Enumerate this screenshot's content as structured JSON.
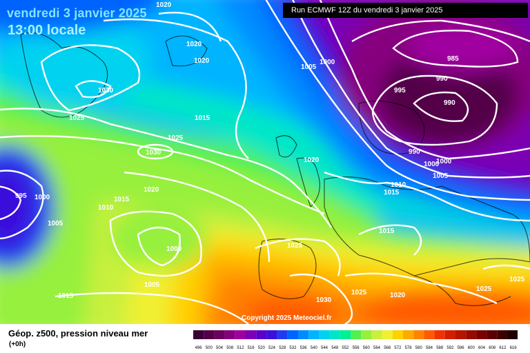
{
  "header": {
    "date_title": "vendredi 3 janvier 2025",
    "time_title": "13:00 locale",
    "run_info": "Run ECMWF 12Z du vendredi 3 janvier 2025"
  },
  "legend": {
    "title": "Géop. z500, pression niveau mer",
    "subtitle": "(+0h)",
    "scale": [
      {
        "label": "496",
        "color": "#3a0033"
      },
      {
        "label": "500",
        "color": "#520048"
      },
      {
        "label": "504",
        "color": "#6a0060"
      },
      {
        "label": "508",
        "color": "#86007e"
      },
      {
        "label": "512",
        "color": "#a000a0"
      },
      {
        "label": "516",
        "color": "#7c00b4"
      },
      {
        "label": "520",
        "color": "#5a00c8"
      },
      {
        "label": "524",
        "color": "#3a10dc"
      },
      {
        "label": "528",
        "color": "#1e3cf0"
      },
      {
        "label": "532",
        "color": "#0064ff"
      },
      {
        "label": "536",
        "color": "#008cff"
      },
      {
        "label": "540",
        "color": "#00b4ff"
      },
      {
        "label": "544",
        "color": "#00d2f0"
      },
      {
        "label": "548",
        "color": "#00e6c8"
      },
      {
        "label": "552",
        "color": "#00f096"
      },
      {
        "label": "556",
        "color": "#50f050"
      },
      {
        "label": "560",
        "color": "#96f03c"
      },
      {
        "label": "564",
        "color": "#c8f03c"
      },
      {
        "label": "568",
        "color": "#f0f032"
      },
      {
        "label": "572",
        "color": "#ffd200"
      },
      {
        "label": "576",
        "color": "#ffaa00"
      },
      {
        "label": "580",
        "color": "#ff8200"
      },
      {
        "label": "584",
        "color": "#ff5a00"
      },
      {
        "label": "588",
        "color": "#f03200"
      },
      {
        "label": "592",
        "color": "#d21e00"
      },
      {
        "label": "596",
        "color": "#b41400"
      },
      {
        "label": "600",
        "color": "#960a00"
      },
      {
        "label": "604",
        "color": "#780000"
      },
      {
        "label": "608",
        "color": "#5a0000"
      },
      {
        "label": "612",
        "color": "#3c0000"
      },
      {
        "label": "616",
        "color": "#1e0000"
      }
    ]
  },
  "copyright": "Copyright 2025 Meteociel.fr",
  "isobar_labels": [
    "1020",
    "1020",
    "1020",
    "1030",
    "1025",
    "1015",
    "1025",
    "1030",
    "1005",
    "1000",
    "985",
    "995",
    "990",
    "990",
    "990",
    "1000",
    "1000",
    "1005",
    "1020",
    "1010",
    "1015",
    "1015",
    "1020",
    "995",
    "1000",
    "1015",
    "1010",
    "1005",
    "1000",
    "1025",
    "1005",
    "1015",
    "1030",
    "1025",
    "1020",
    "1025",
    "1025"
  ]
}
